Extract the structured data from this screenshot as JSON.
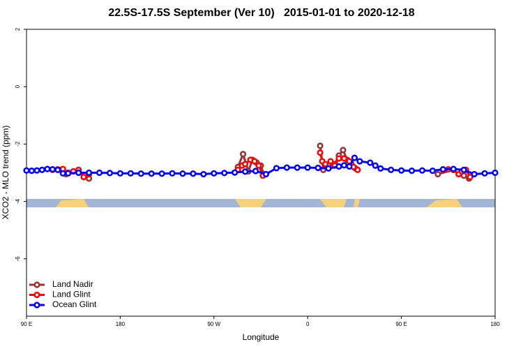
{
  "chart_data": {
    "type": "line",
    "title": "22.5S-17.5S September (Ver 10)   2015-01-01 to 2020-12-18",
    "x_label": "Longitude",
    "y_label": "XCO2 - MLO trend (ppm)",
    "xlim": [
      90,
      540
    ],
    "ylim": [
      -8,
      2
    ],
    "xticks": [
      {
        "value": 90,
        "label": "90 E"
      },
      180,
      {
        "value": 270,
        "label": "90 W"
      },
      {
        "value": 360,
        "label": "0"
      },
      {
        "value": 450,
        "label": "90 E"
      },
      {
        "value": 540,
        "label": "180"
      }
    ],
    "yticks": [
      2,
      0,
      -2,
      -4,
      -6
    ],
    "legend": "bottom-left",
    "series": [
      {
        "name": "Land Nadir",
        "color": "#993333",
        "x": [
          123,
          128,
          140,
          145,
          150,
          290,
          293,
          298,
          303,
          307,
          311,
          315,
          318,
          360,
          372,
          375,
          380,
          386,
          390,
          394,
          398,
          402,
          406,
          470,
          485,
          500,
          505,
          510,
          515
        ],
        "values": [
          -2.9,
          -3.05,
          -2.95,
          -3.15,
          -3.2,
          null,
          -2.8,
          -2.35,
          -2.95,
          -2.55,
          -2.65,
          -2.75,
          -3.05,
          null,
          -2.06,
          -2.9,
          -2.75,
          -2.7,
          -2.4,
          -2.21,
          -2.55,
          -2.7,
          -2.85,
          null,
          -3.05,
          -2.9,
          -3.05,
          -3.1,
          -3.2
        ]
      },
      {
        "name": "Land Glint",
        "color": "#ff0000",
        "x": [
          115,
          120,
          125,
          130,
          135,
          140,
          145,
          150,
          290,
          293,
          297,
          300,
          305,
          309,
          313,
          317,
          360,
          372,
          374,
          377,
          382,
          386,
          390,
          395,
          400,
          404,
          408,
          470,
          490,
          495,
          500,
          505,
          508,
          512,
          516
        ],
        "values": [
          -2.9,
          -2.88,
          -2.87,
          -3.0,
          -2.95,
          -2.9,
          -3.15,
          -3.05,
          null,
          -2.9,
          -2.75,
          -2.7,
          -2.55,
          -2.6,
          -2.75,
          -3.1,
          null,
          -2.3,
          -2.6,
          -2.7,
          -2.6,
          -2.75,
          -2.5,
          -2.5,
          -2.6,
          -2.8,
          -2.9,
          null,
          -2.9,
          -2.88,
          -2.9,
          -3.05,
          -2.95,
          -2.9,
          -3.15
        ]
      },
      {
        "name": "Ocean Glint",
        "color": "#0000ff",
        "x": [
          90,
          95,
          100,
          105,
          110,
          115,
          120,
          125,
          130,
          140,
          150,
          160,
          170,
          180,
          190,
          200,
          210,
          220,
          230,
          240,
          250,
          260,
          270,
          280,
          290,
          300,
          310,
          320,
          330,
          340,
          350,
          360,
          370,
          380,
          390,
          395,
          400,
          405,
          410,
          420,
          425,
          430,
          440,
          450,
          460,
          470,
          480,
          490,
          500,
          510,
          520,
          530,
          540
        ],
        "values": [
          -2.92,
          -2.93,
          -2.92,
          -2.9,
          -2.87,
          -2.88,
          -2.9,
          -3.02,
          -3.02,
          -3.0,
          -3.0,
          -3.0,
          -3.01,
          -3.02,
          -3.02,
          -3.03,
          -3.03,
          -3.03,
          -3.02,
          -3.03,
          -3.03,
          -3.05,
          -3.02,
          -3.01,
          -2.99,
          -2.96,
          -2.94,
          -3.05,
          -2.84,
          -2.82,
          -2.82,
          -2.82,
          -2.83,
          -2.85,
          -2.78,
          -2.74,
          -2.78,
          -2.48,
          -2.6,
          -2.65,
          -2.75,
          -2.85,
          -2.9,
          -2.92,
          -2.93,
          -2.92,
          -2.93,
          -2.88,
          -2.87,
          -2.9,
          -3.05,
          -3.02,
          -3.0
        ]
      }
    ]
  }
}
